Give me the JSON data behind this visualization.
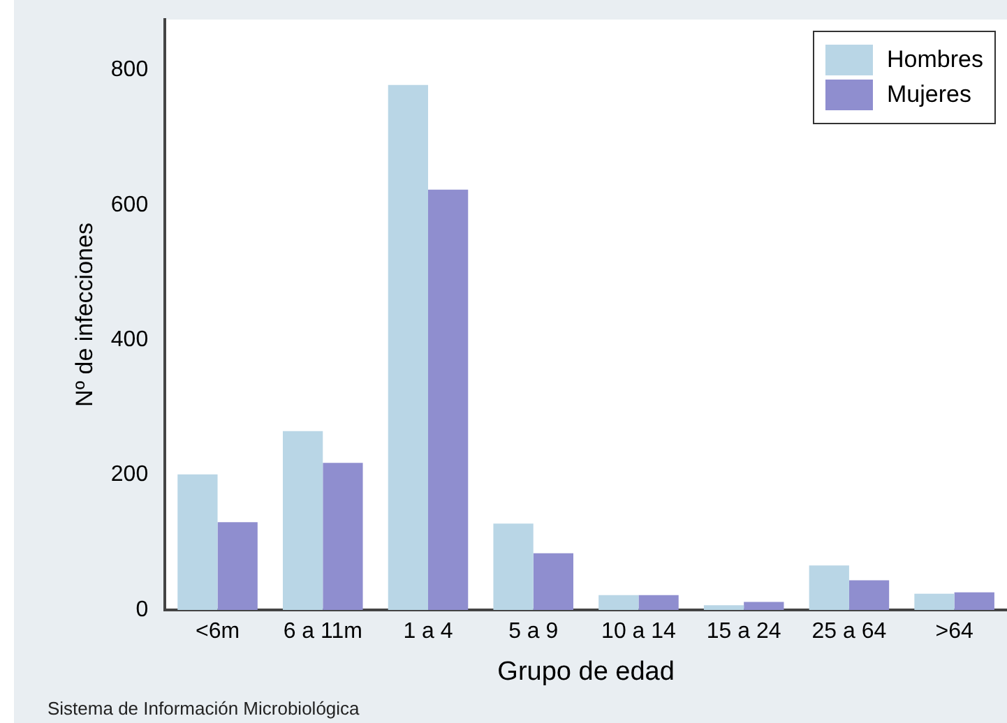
{
  "chart_data": {
    "type": "bar",
    "xlabel": "Grupo de edad",
    "ylabel": "Nº de infecciones",
    "categories": [
      "<6m",
      "6 a 11m",
      "1 a 4",
      "5 a 9",
      "10 a 14",
      "15 a 24",
      "25 a 64",
      ">64"
    ],
    "series": [
      {
        "name": "Hombres",
        "color": "#b9d6e6",
        "values": [
          201,
          265,
          778,
          128,
          22,
          7,
          66,
          24
        ]
      },
      {
        "name": "Mujeres",
        "color": "#8f8ecf",
        "values": [
          130,
          218,
          623,
          84,
          22,
          12,
          44,
          26
        ]
      }
    ],
    "ylim": [
      0,
      875
    ],
    "yticks": [
      0,
      200,
      400,
      600,
      800
    ],
    "grid": false,
    "legend": "top right",
    "annotations": [
      "Sistema de Información Microbiológica"
    ]
  }
}
